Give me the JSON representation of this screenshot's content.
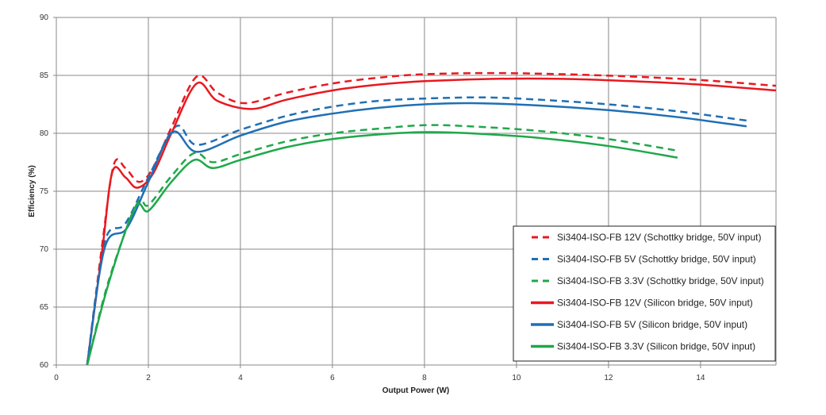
{
  "chart_data": {
    "type": "line",
    "title": "",
    "xlabel": "Output Power (W)",
    "ylabel": "Efficiency (%)",
    "xlim": [
      0,
      15.64
    ],
    "ylim": [
      60,
      90
    ],
    "xticks": [
      0,
      2,
      4,
      6,
      8,
      10,
      12,
      14
    ],
    "yticks": [
      60,
      65,
      70,
      75,
      80,
      85,
      90
    ],
    "grid": true,
    "legend_position": "bottom-right",
    "series": [
      {
        "name": "Si3404-ISO-FB 12V (Schottky bridge, 50V input)",
        "color": "#e8191f",
        "dash": true,
        "x": [
          0.67,
          1.0,
          1.25,
          1.5,
          1.8,
          2.1,
          2.5,
          3.05,
          3.5,
          4.1,
          5,
          6,
          7,
          8,
          9.5,
          11,
          12.5,
          14,
          15.64
        ],
        "y": [
          60,
          70.5,
          77.3,
          77.0,
          75.8,
          77.0,
          80.5,
          84.9,
          83.5,
          82.6,
          83.5,
          84.3,
          84.8,
          85.1,
          85.2,
          85.1,
          84.9,
          84.6,
          84.1
        ]
      },
      {
        "name": "Si3404-ISO-FB 5V (Schottky bridge, 50V input)",
        "color": "#1f6fb5",
        "dash": true,
        "x": [
          0.67,
          1.05,
          1.5,
          2.0,
          2.6,
          3.05,
          4,
          5,
          6,
          7,
          8,
          9.3,
          10.5,
          12,
          13.5,
          15
        ],
        "y": [
          60,
          70.6,
          72.2,
          76.2,
          80.6,
          79.0,
          80.3,
          81.5,
          82.3,
          82.8,
          83.0,
          83.1,
          82.9,
          82.5,
          81.9,
          81.1
        ]
      },
      {
        "name": "Si3404-ISO-FB 3.3V (Schottky bridge, 50V input)",
        "color": "#1fa84a",
        "dash": true,
        "x": [
          0.67,
          1.14,
          1.75,
          2.0,
          2.5,
          3.0,
          3.4,
          4,
          5,
          6,
          7,
          8,
          9,
          10.5,
          12,
          13.5
        ],
        "y": [
          60,
          67.3,
          73.9,
          73.8,
          76.3,
          78.3,
          77.5,
          78.2,
          79.3,
          80.0,
          80.4,
          80.7,
          80.6,
          80.2,
          79.5,
          78.5
        ]
      },
      {
        "name": "Si3404-ISO-FB 12V (Silicon bridge, 50V input)",
        "color": "#e8191f",
        "dash": false,
        "x": [
          0.67,
          1.0,
          1.22,
          1.5,
          1.76,
          2.1,
          2.5,
          3.05,
          3.5,
          4.24,
          5,
          6,
          7,
          8,
          9.5,
          11,
          12.5,
          14,
          15.64
        ],
        "y": [
          60,
          70.0,
          76.7,
          76.2,
          75.3,
          76.5,
          80.0,
          84.3,
          82.8,
          82.1,
          82.9,
          83.7,
          84.2,
          84.5,
          84.7,
          84.7,
          84.5,
          84.2,
          83.7
        ]
      },
      {
        "name": "Si3404-ISO-FB 5V (Silicon bridge, 50V input)",
        "color": "#1f6fb5",
        "dash": false,
        "x": [
          0.67,
          1.05,
          1.53,
          2.0,
          2.53,
          3.05,
          4,
          5,
          6,
          7,
          8,
          9,
          10.5,
          12,
          13.5,
          15
        ],
        "y": [
          60,
          70.1,
          71.8,
          75.8,
          80.1,
          78.4,
          79.8,
          81.0,
          81.7,
          82.2,
          82.5,
          82.6,
          82.4,
          82.0,
          81.4,
          80.6
        ]
      },
      {
        "name": "Si3404-ISO-FB 3.3V (Silicon bridge, 50V input)",
        "color": "#1fa84a",
        "dash": false,
        "x": [
          0.67,
          1.14,
          1.71,
          2.0,
          2.5,
          3.0,
          3.4,
          4,
          5,
          6,
          7,
          8,
          9,
          10.5,
          12,
          13.5
        ],
        "y": [
          60,
          67.1,
          73.6,
          73.3,
          75.8,
          77.7,
          77.0,
          77.7,
          78.8,
          79.5,
          79.9,
          80.1,
          80.0,
          79.6,
          78.9,
          77.9
        ]
      }
    ]
  }
}
